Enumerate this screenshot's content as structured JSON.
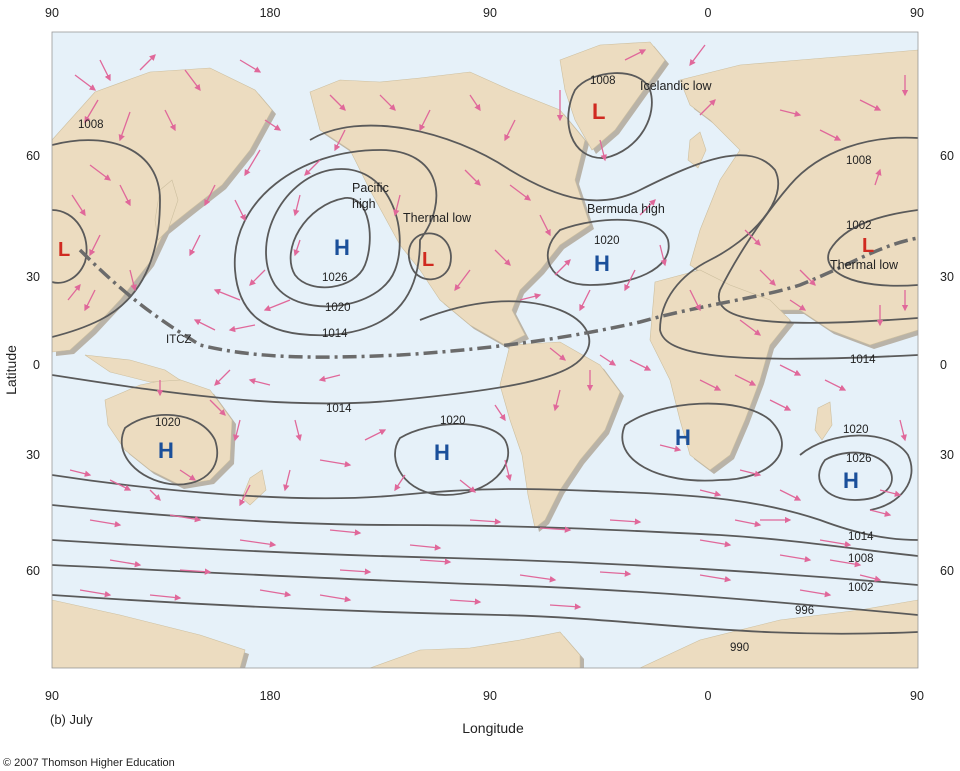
{
  "colors": {
    "ocean": "#e6f1f9",
    "land": "#ecdcc0",
    "land_shadow": "#b9b3a8",
    "isobar": "#5a5a5a",
    "itcz": "#6b6b6b",
    "arrow": "#e0689a",
    "high": "#1a4f9a",
    "low": "#d02a20"
  },
  "axes": {
    "top_ticks": [
      "90",
      "180",
      "90",
      "0",
      "90"
    ],
    "bottom_ticks": [
      "90",
      "180",
      "90",
      "0",
      "90"
    ],
    "left_ticks": [
      "60",
      "30",
      "0",
      "30",
      "60"
    ],
    "right_ticks": [
      "60",
      "30",
      "0",
      "30",
      "60"
    ],
    "latitude_label": "Latitude",
    "longitude_label": "Longitude"
  },
  "caption": "(b) July",
  "copyright": "© 2007 Thomson Higher Education",
  "pressure_systems": [
    {
      "type": "H",
      "name": "Pacific high",
      "name_lines": [
        "Pacific",
        "high"
      ]
    },
    {
      "type": "L",
      "name": "Thermal low"
    },
    {
      "type": "H",
      "name": "Bermuda high"
    },
    {
      "type": "L",
      "name": "Icelandic low"
    },
    {
      "type": "L",
      "name": ""
    },
    {
      "type": "L",
      "name": "Thermal low"
    },
    {
      "type": "H",
      "name": ""
    },
    {
      "type": "H",
      "name": ""
    },
    {
      "type": "H",
      "name": ""
    },
    {
      "type": "H",
      "name": ""
    }
  ],
  "isobar_labels": [
    "1008",
    "1026",
    "1020",
    "1014",
    "1008",
    "1020",
    "1008",
    "1002",
    "1014",
    "1014",
    "1020",
    "1020",
    "1020",
    "1026",
    "1014",
    "1008",
    "1002",
    "996",
    "990"
  ],
  "itcz_label": "ITCZ"
}
